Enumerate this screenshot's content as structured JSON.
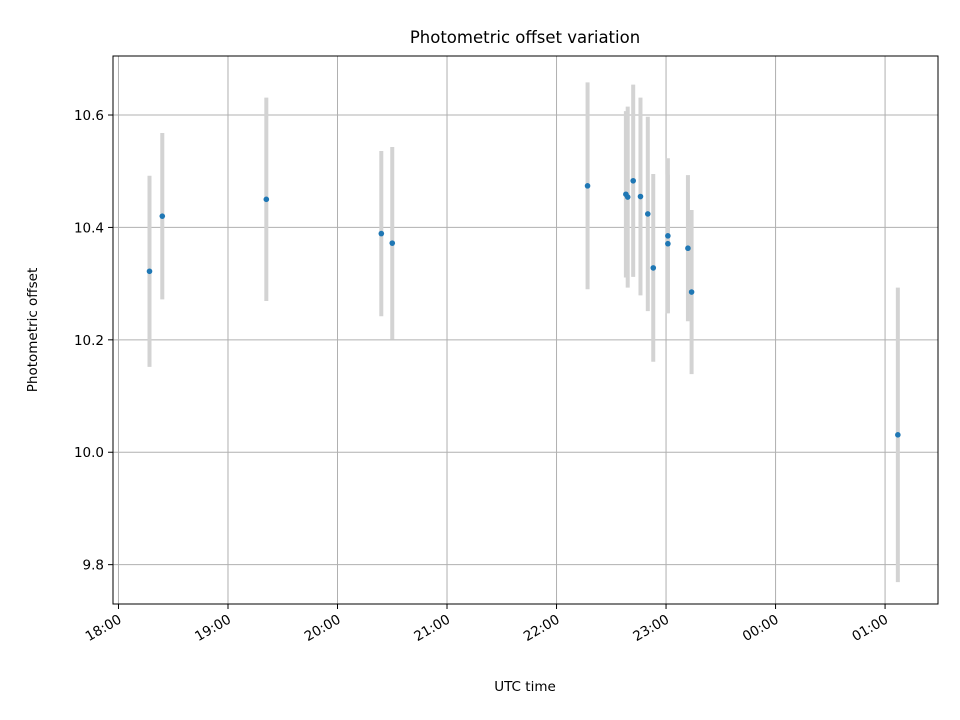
{
  "chart_data": {
    "type": "scatter",
    "title": "Photometric offset variation",
    "xlabel": "UTC time",
    "ylabel": "Photometric offset",
    "x_unit": "UTC time (HH:MM, crossing midnight)",
    "xlim": [
      "17:57",
      "01:29"
    ],
    "ylim": [
      9.73,
      10.705
    ],
    "x_ticks": [
      "18:00",
      "19:00",
      "20:00",
      "21:00",
      "22:00",
      "23:00",
      "00:00",
      "01:00"
    ],
    "y_ticks": [
      9.8,
      10.0,
      10.2,
      10.4,
      10.6
    ],
    "y_tick_labels": [
      "9.8",
      "10.0",
      "10.2",
      "10.4",
      "10.6"
    ],
    "grid": true,
    "errorbar_color": "#d3d3d3",
    "marker_color": "#1f77b4",
    "points": [
      {
        "x": "18:17",
        "y": 10.322,
        "err": 0.17
      },
      {
        "x": "18:24",
        "y": 10.42,
        "err": 0.148
      },
      {
        "x": "19:21",
        "y": 10.45,
        "err": 0.181
      },
      {
        "x": "20:24",
        "y": 10.389,
        "err": 0.147
      },
      {
        "x": "20:30",
        "y": 10.372,
        "err": 0.171
      },
      {
        "x": "22:17",
        "y": 10.474,
        "err": 0.184
      },
      {
        "x": "22:38",
        "y": 10.459,
        "err": 0.148
      },
      {
        "x": "22:39",
        "y": 10.454,
        "err": 0.161
      },
      {
        "x": "22:42",
        "y": 10.483,
        "err": 0.171
      },
      {
        "x": "22:46",
        "y": 10.455,
        "err": 0.176
      },
      {
        "x": "22:50",
        "y": 10.424,
        "err": 0.173
      },
      {
        "x": "22:53",
        "y": 10.328,
        "err": 0.167
      },
      {
        "x": "23:01",
        "y": 10.385,
        "err": 0.138
      },
      {
        "x": "23:01",
        "y": 10.371,
        "err": 0.123
      },
      {
        "x": "23:12",
        "y": 10.363,
        "err": 0.13
      },
      {
        "x": "23:14",
        "y": 10.285,
        "err": 0.146
      },
      {
        "x": "01:07",
        "y": 10.031,
        "err": 0.262
      }
    ]
  }
}
